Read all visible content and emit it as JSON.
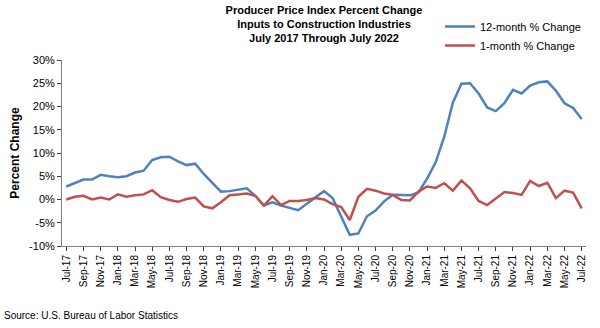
{
  "chart_data": {
    "type": "line",
    "title": [
      "Producer Price Index Percent Change",
      "Inputs to Construction Industries",
      "July 2017 Through July 2022"
    ],
    "ylabel": "Percent Change",
    "source": "Source: U.S. Bureau of Labor Statistics",
    "categories": [
      "Jul-17",
      null,
      "Sep-17",
      null,
      "Nov-17",
      null,
      "Jan-18",
      null,
      "Mar-18",
      null,
      "May-18",
      null,
      "Jul-18",
      null,
      "Sep-18",
      null,
      "Nov-18",
      null,
      "Jan-19",
      null,
      "Mar-19",
      null,
      "May-19",
      null,
      "Jul-19",
      null,
      "Sep-19",
      null,
      "Nov-19",
      null,
      "Jan-20",
      null,
      "Mar-20",
      null,
      "May-20",
      null,
      "Jul-20",
      null,
      "Sep-20",
      null,
      "Nov-20",
      null,
      "Jan-21",
      null,
      "Mar-21",
      null,
      "May-21",
      null,
      "Jul-21",
      null,
      "Sep-21",
      null,
      "Nov-21",
      null,
      "Jan-22",
      null,
      "Mar-22",
      null,
      "May-22",
      null,
      "Jul-22"
    ],
    "series": [
      {
        "name": "12-month % Change",
        "color": "#4f81bd",
        "values": [
          2.8,
          3.5,
          4.3,
          4.3,
          5.3,
          5.0,
          4.8,
          5.0,
          5.8,
          6.2,
          8.5,
          9.1,
          9.2,
          8.2,
          7.4,
          7.7,
          5.5,
          3.6,
          1.7,
          1.8,
          2.1,
          2.4,
          0.8,
          -1.3,
          -0.6,
          -1.3,
          -1.8,
          -2.3,
          -0.9,
          0.5,
          1.8,
          0.3,
          -3.5,
          -7.6,
          -7.3,
          -3.6,
          -2.4,
          -0.4,
          1.0,
          0.9,
          0.9,
          1.5,
          4.5,
          8.0,
          13.5,
          20.8,
          24.9,
          25.0,
          22.8,
          19.8,
          19.0,
          20.7,
          23.6,
          22.8,
          24.5,
          25.2,
          25.4,
          23.4,
          20.7,
          19.7,
          17.3
        ]
      },
      {
        "name": "1-month % Change",
        "color": "#c0504d",
        "values": [
          0.0,
          0.6,
          0.8,
          0.0,
          0.4,
          0.0,
          1.1,
          0.6,
          0.9,
          1.1,
          2.0,
          0.5,
          -0.1,
          -0.5,
          0.1,
          0.4,
          -1.5,
          -1.9,
          -0.6,
          0.9,
          1.1,
          1.3,
          0.8,
          -1.3,
          0.7,
          -1.2,
          -0.3,
          -0.3,
          -0.1,
          0.3,
          0.0,
          -1.0,
          -1.6,
          -4.4,
          0.6,
          2.3,
          1.9,
          1.3,
          1.0,
          -0.1,
          -0.2,
          1.7,
          2.8,
          2.5,
          3.5,
          1.9,
          4.1,
          2.4,
          -0.3,
          -1.2,
          0.2,
          1.6,
          1.4,
          1.0,
          4.0,
          2.9,
          3.6,
          0.3,
          1.9,
          1.5,
          -1.9
        ]
      }
    ],
    "ylim": [
      -10,
      30
    ],
    "yticks": [
      {
        "value": -10,
        "label": "-10%"
      },
      {
        "value": -5,
        "label": "-5%"
      },
      {
        "value": 0,
        "label": "0%"
      },
      {
        "value": 5,
        "label": "5%"
      },
      {
        "value": 10,
        "label": "10%"
      },
      {
        "value": 15,
        "label": "15%"
      },
      {
        "value": 20,
        "label": "20%"
      },
      {
        "value": 25,
        "label": "25%"
      },
      {
        "value": 30,
        "label": "30%"
      }
    ],
    "grid": false,
    "legend": "upper right"
  }
}
